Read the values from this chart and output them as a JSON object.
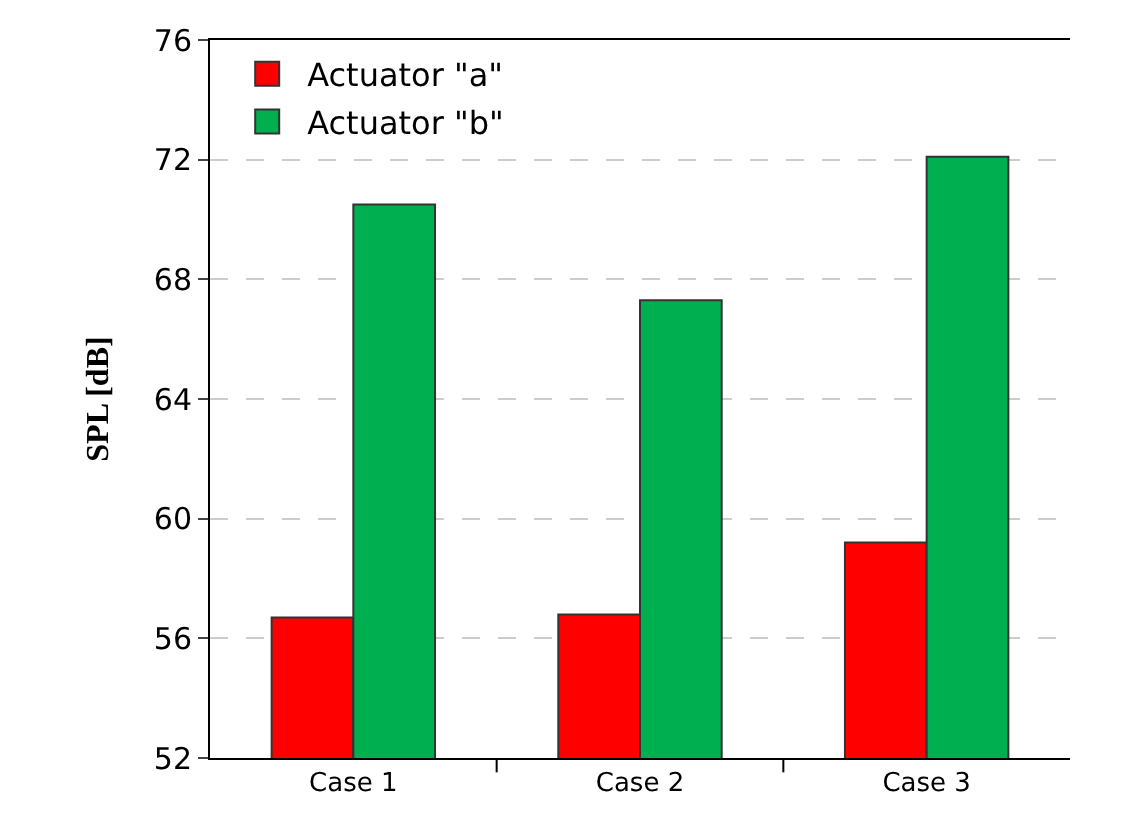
{
  "chart_data": {
    "type": "bar",
    "ylabel": "SPL [dB]",
    "categories": [
      "Case 1",
      "Case 2",
      "Case 3"
    ],
    "series": [
      {
        "name": "Actuator \"a\"",
        "color": "#ff0000",
        "values": [
          56.7,
          56.8,
          59.2
        ]
      },
      {
        "name": "Actuator \"b\"",
        "color": "#00b050",
        "values": [
          70.5,
          67.3,
          72.1
        ]
      }
    ],
    "ylim": [
      52,
      76
    ],
    "yticks": [
      52,
      56,
      60,
      64,
      68,
      72,
      76
    ],
    "grid": "y",
    "legend": "top left"
  }
}
